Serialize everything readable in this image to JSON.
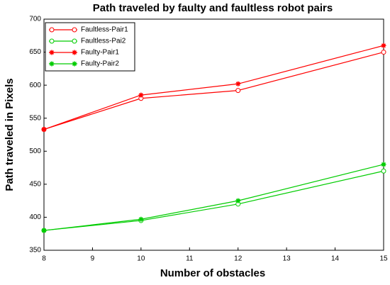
{
  "chart_data": {
    "type": "line",
    "title": "Path traveled by faulty and faultless robot pairs",
    "x_label": "Number of obstacles",
    "y_label": "Path traveled in Pixels",
    "x": [
      8,
      10,
      12,
      15
    ],
    "xlim": [
      8,
      15
    ],
    "xticks": [
      8,
      9,
      10,
      11,
      12,
      13,
      14,
      15
    ],
    "ylim": [
      350,
      700
    ],
    "yticks": [
      350,
      400,
      450,
      500,
      550,
      600,
      650,
      700
    ],
    "grid": false,
    "legend": "upper left",
    "series": [
      {
        "name": "Faultless-Pair1",
        "color": "#ff0000",
        "marker": "circle",
        "values": [
          533,
          580,
          592,
          650
        ]
      },
      {
        "name": "Faultless-Pai2",
        "color": "#00cc00",
        "marker": "circle",
        "values": [
          380,
          395,
          420,
          470
        ]
      },
      {
        "name": "Faulty-Pair1",
        "color": "#ff0000",
        "marker": "star",
        "values": [
          533,
          585,
          602,
          660
        ]
      },
      {
        "name": "Faulty-Pair2",
        "color": "#00cc00",
        "marker": "star",
        "values": [
          380,
          397,
          425,
          480
        ]
      }
    ]
  }
}
